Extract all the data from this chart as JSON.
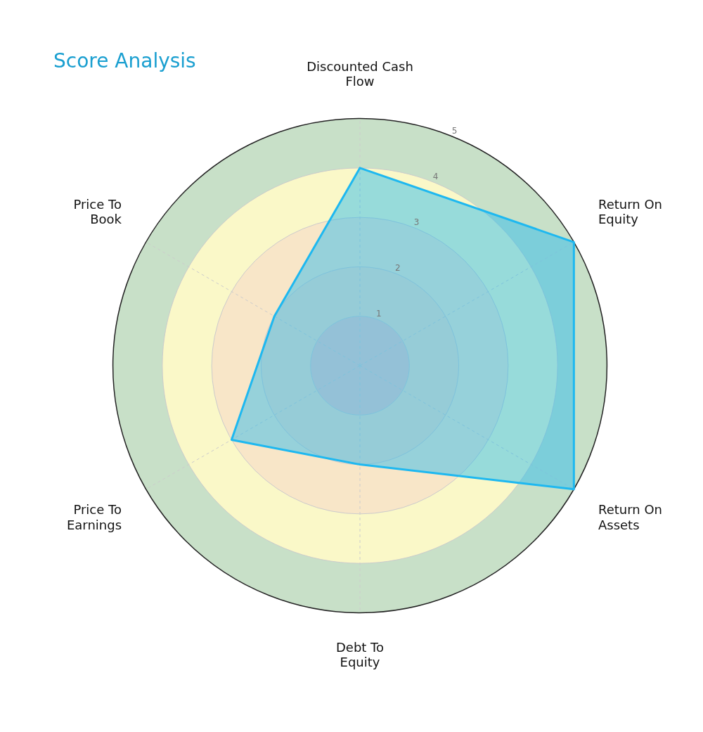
{
  "chart_data": {
    "type": "radar",
    "title": "Score Analysis",
    "categories": [
      "Discounted Cash Flow",
      "Return On Equity",
      "Return On Assets",
      "Debt To Equity",
      "Price To Earnings",
      "Price To Book"
    ],
    "series": [
      {
        "color": "#1eb8f0",
        "values": [
          4,
          5,
          5,
          2,
          3,
          2
        ]
      }
    ],
    "ylim": [
      0,
      5
    ],
    "yticks": [
      1,
      2,
      3,
      4,
      5
    ],
    "grid": true,
    "legend": false
  }
}
